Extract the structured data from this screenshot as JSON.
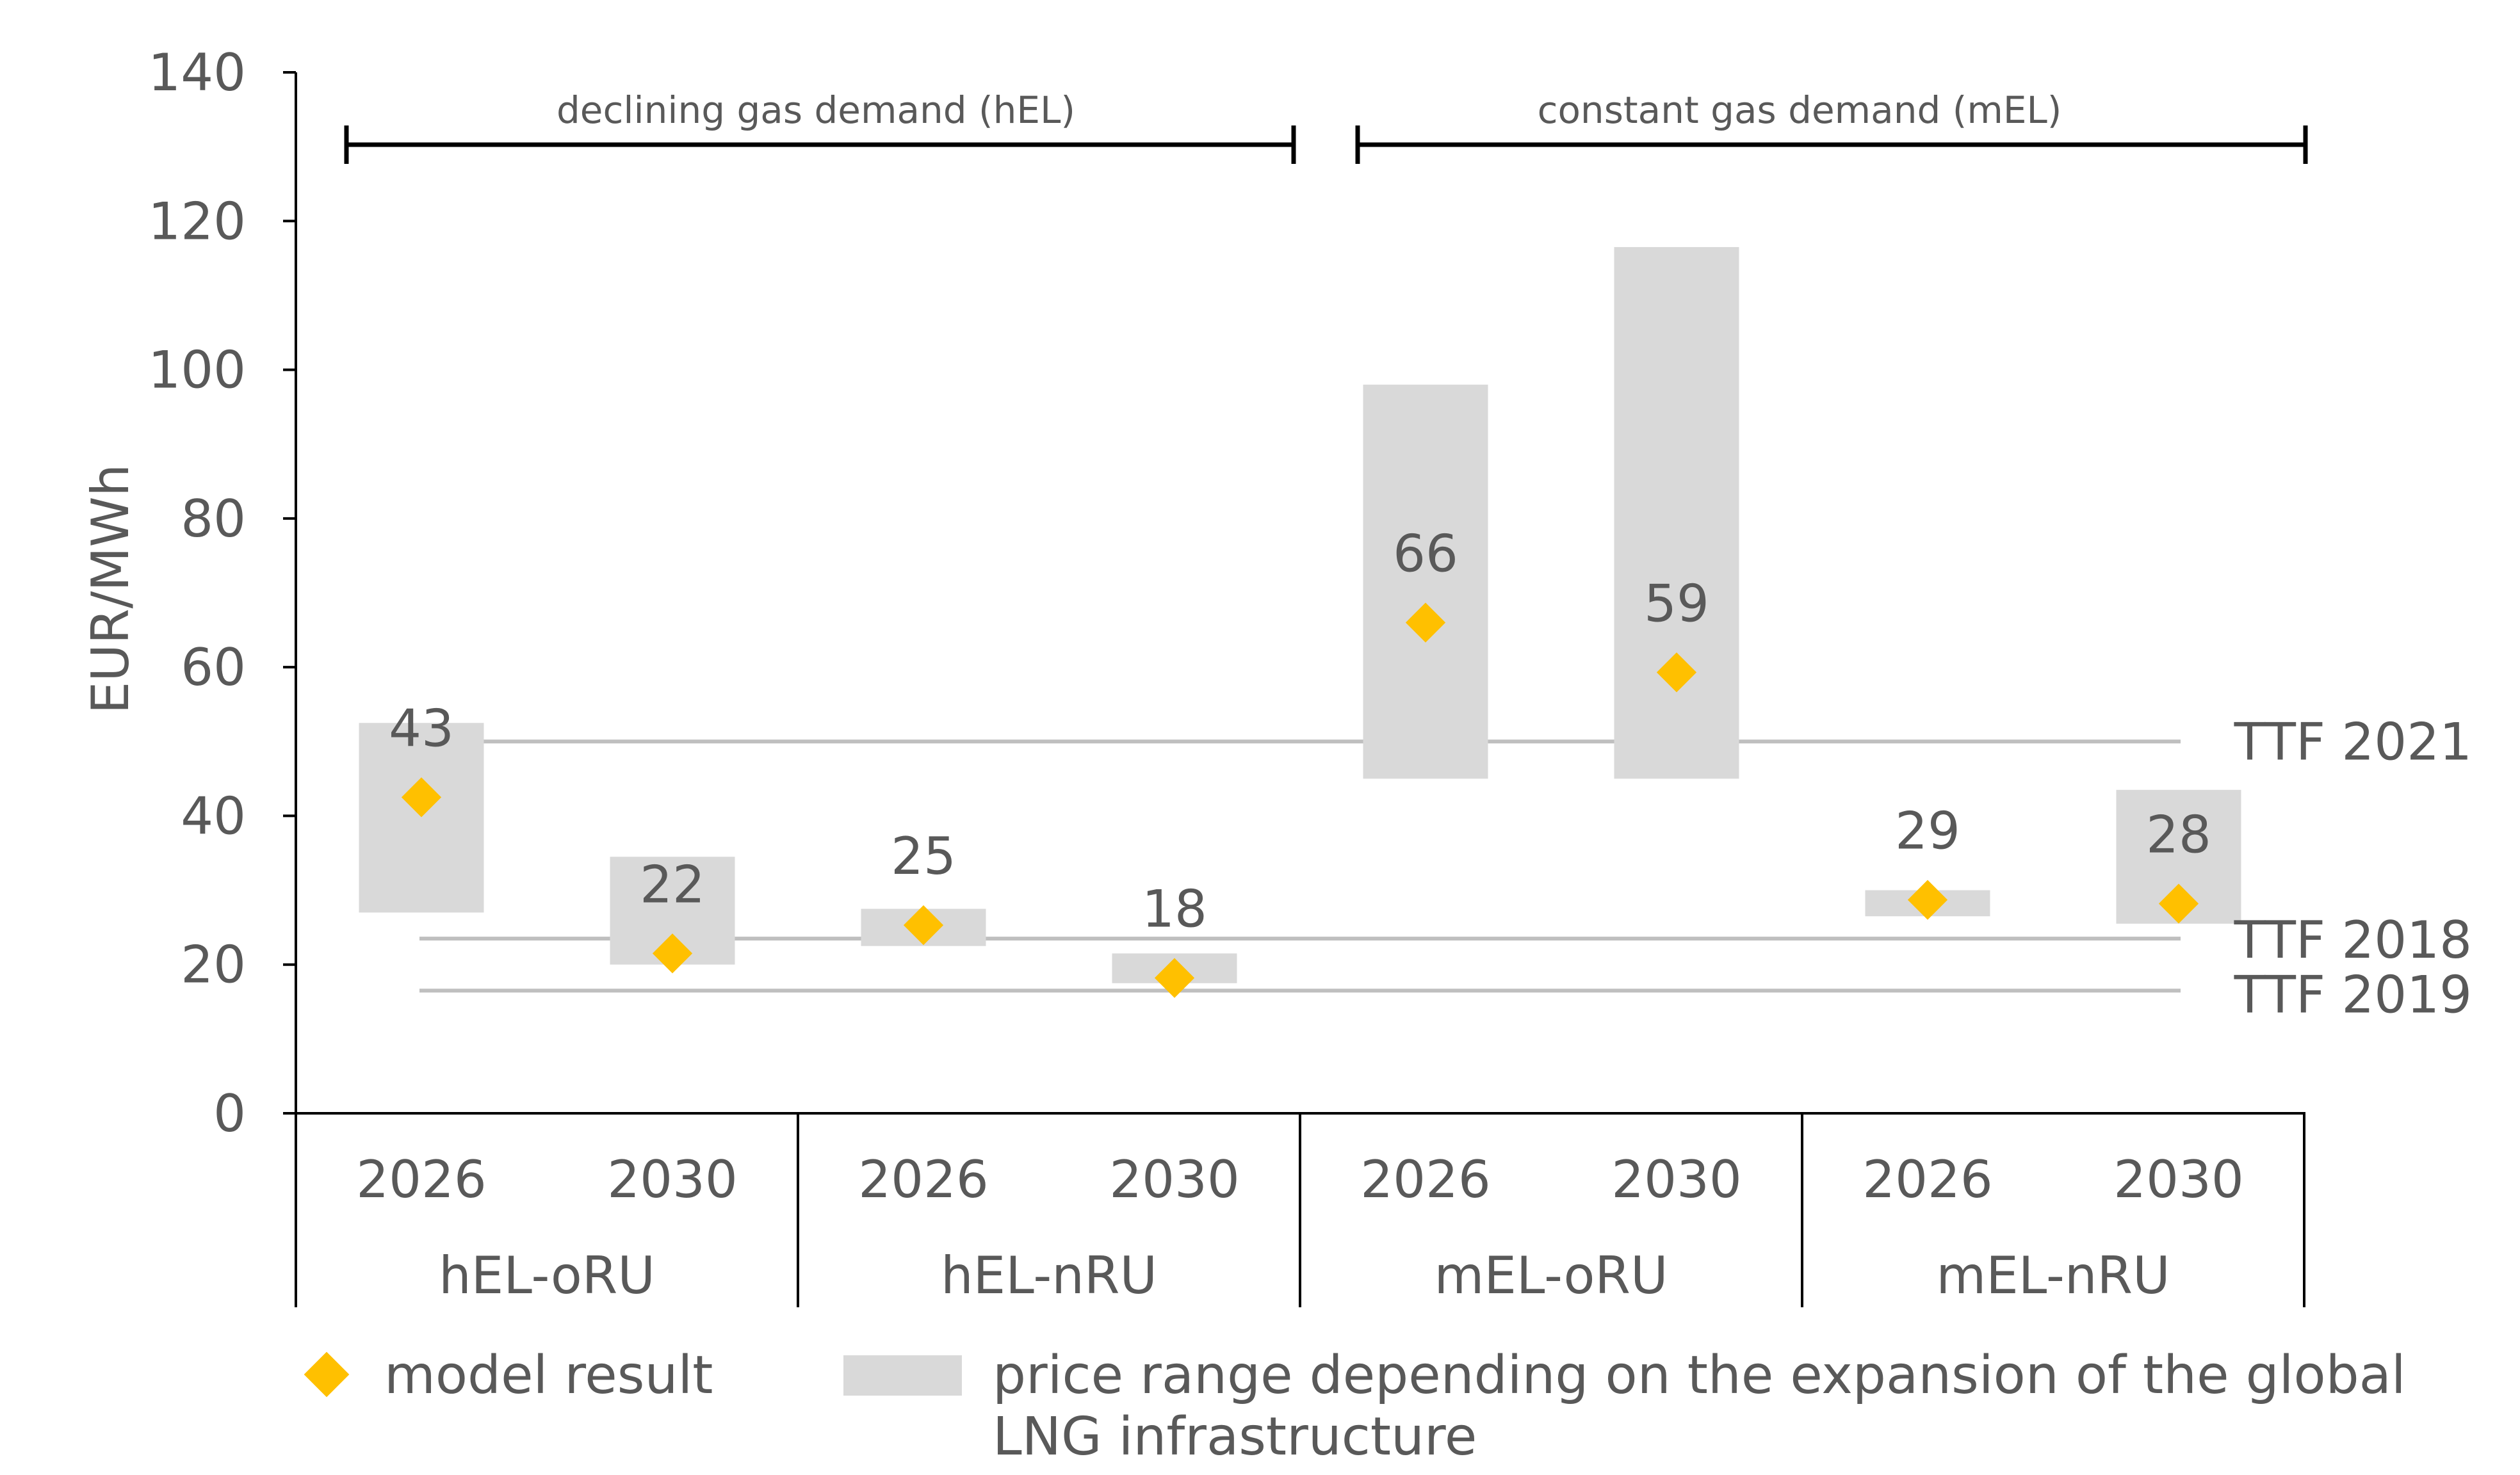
{
  "chart_data": {
    "type": "range-bar",
    "ylabel": "EUR/MWh",
    "ylim": [
      0,
      140
    ],
    "yticks": [
      0,
      20,
      40,
      60,
      80,
      100,
      120,
      140
    ],
    "years": [
      "2026",
      "2030",
      "2026",
      "2030",
      "2026",
      "2030",
      "2026",
      "2030"
    ],
    "groups": [
      "hEL-oRU",
      "hEL-nRU",
      "mEL-oRU",
      "mEL-nRU"
    ],
    "ranges": [
      [
        27,
        52.5
      ],
      [
        20,
        34.5
      ],
      [
        22.5,
        27.5
      ],
      [
        17.5,
        21.5
      ],
      [
        45,
        98
      ],
      [
        45,
        116.5
      ],
      [
        26.5,
        30
      ],
      [
        25.5,
        43.5
      ]
    ],
    "model_results": [
      42.5,
      21.5,
      25.3,
      18.2,
      66,
      59.3,
      28.7,
      28.2
    ],
    "data_labels": [
      "43",
      "22",
      "25",
      "18",
      "66",
      "59",
      "29",
      "28"
    ],
    "reference_lines": [
      {
        "label": "TTF 2021",
        "value": 50
      },
      {
        "label": "TTF 2018",
        "value": 23.5
      },
      {
        "label": "TTF 2019",
        "value": 16.5
      }
    ],
    "brackets": [
      {
        "label": "declining gas demand (hEL)"
      },
      {
        "label": "constant gas demand (mEL)"
      }
    ],
    "legend": {
      "marker_label": "model result",
      "range_label_line1": "price range depending on the expansion of the global",
      "range_label_line2": "LNG infrastructure"
    },
    "colors": {
      "range": "#d9d9d9",
      "marker": "#ffc000",
      "ref_line": "#bfbfbf",
      "axis": "#000000",
      "text": "#595959"
    }
  }
}
